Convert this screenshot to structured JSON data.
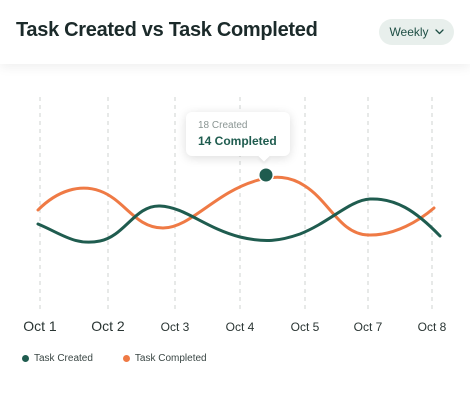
{
  "header": {
    "title": "Task Created vs Task Completed",
    "period_dropdown": {
      "selected": "Weekly"
    }
  },
  "tooltip": {
    "created": "18 Created",
    "completed": "14 Completed"
  },
  "colors": {
    "created": "#1f5c4f",
    "completed": "#ef7a45",
    "grid": "#cfd3d2"
  },
  "chart_data": {
    "type": "line",
    "x": [
      "Oct 1",
      "Oct 2",
      "Oct 3",
      "Oct 4",
      "Oct 5",
      "Oct 7",
      "Oct 8"
    ],
    "series": [
      {
        "name": "Task Created",
        "color": "#1f5c4f"
      },
      {
        "name": "Task Completed",
        "color": "#ef7a45"
      }
    ],
    "highlight": {
      "series": "Task Created",
      "created": 18,
      "completed": 14
    },
    "grid": "vertical dashed",
    "legend": "bottom-left"
  }
}
